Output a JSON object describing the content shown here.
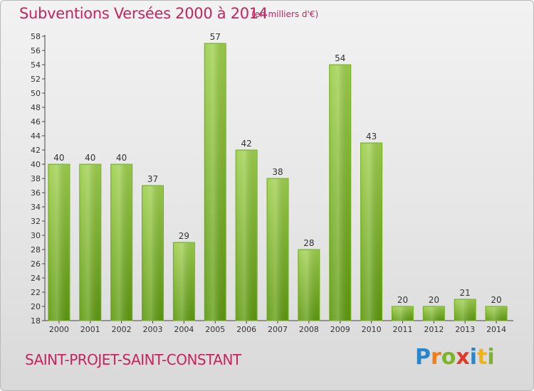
{
  "header": {
    "title": "Subventions Versées 2000 à 2014",
    "unit": "(en milliers d'€)"
  },
  "footer": {
    "commune": "SAINT-PROJET-SAINT-CONSTANT",
    "logo_text": "Proxiti"
  },
  "colors": {
    "accent": "#c4245f",
    "bar_top": "#9ed04d",
    "bar_bottom": "#5f9a10"
  },
  "chart_data": {
    "type": "bar",
    "title": "Subventions Versées 2000 à 2014",
    "subtitle": "(en milliers d'€)",
    "categories": [
      "2000",
      "2001",
      "2002",
      "2003",
      "2004",
      "2005",
      "2006",
      "2007",
      "2008",
      "2009",
      "2010",
      "2011",
      "2012",
      "2013",
      "2014"
    ],
    "values": [
      40,
      40,
      40,
      37,
      29,
      57,
      42,
      38,
      28,
      54,
      43,
      20,
      20,
      21,
      20
    ],
    "ylim": [
      18,
      58
    ],
    "yticks": [
      18,
      20,
      22,
      24,
      26,
      28,
      30,
      32,
      34,
      36,
      38,
      40,
      42,
      44,
      46,
      48,
      50,
      52,
      54,
      56,
      58
    ],
    "grid": false,
    "legend": "none"
  }
}
